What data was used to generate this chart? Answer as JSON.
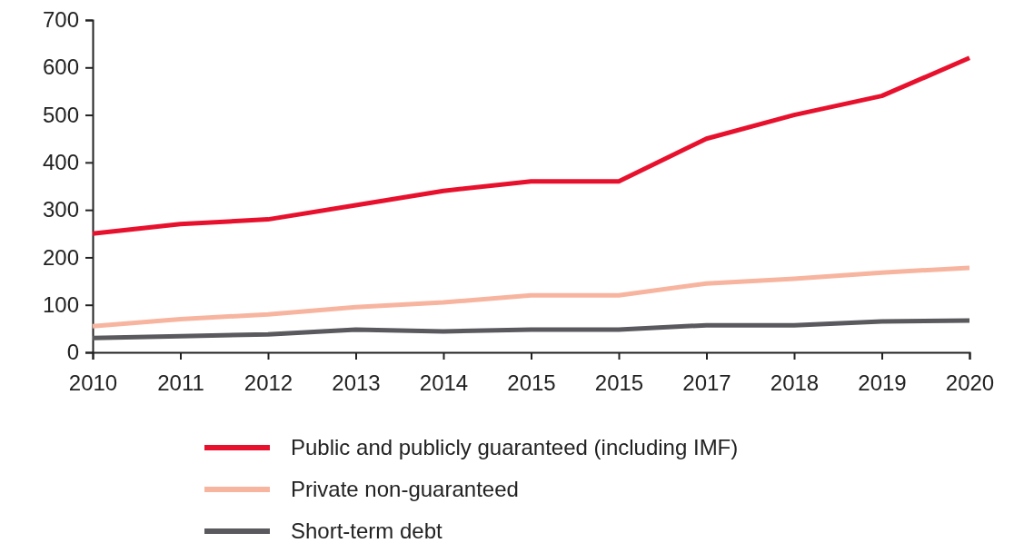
{
  "chart_data": {
    "type": "line",
    "categories": [
      "2010",
      "2011",
      "2012",
      "2013",
      "2014",
      "2015",
      "2015",
      "2017",
      "2018",
      "2019",
      "2020"
    ],
    "series": [
      {
        "name": "Public and publicly guaranteed (including IMF)",
        "color": "#e8112d",
        "values": [
          250,
          270,
          280,
          310,
          340,
          360,
          360,
          450,
          500,
          540,
          620
        ]
      },
      {
        "name": "Private non-guaranteed",
        "color": "#f7b5a0",
        "values": [
          55,
          70,
          80,
          95,
          105,
          120,
          120,
          145,
          155,
          168,
          178
        ]
      },
      {
        "name": "Short-term debt",
        "color": "#5a5a5e",
        "values": [
          30,
          34,
          38,
          48,
          44,
          48,
          48,
          57,
          57,
          65,
          67
        ]
      }
    ],
    "ylim": [
      0,
      700
    ],
    "yticks": [
      0,
      100,
      200,
      300,
      400,
      500,
      600,
      700
    ],
    "grid": false,
    "legend": "bottom",
    "marker": "none",
    "line_style": "solid"
  }
}
